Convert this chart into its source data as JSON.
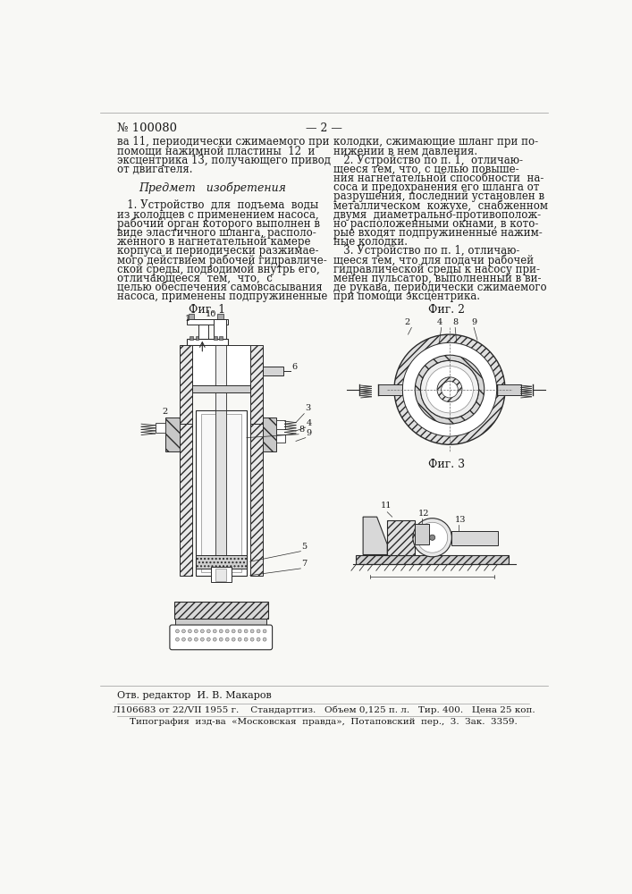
{
  "patent_number": "№ 100080",
  "page_marker": "— 2 —",
  "background_color": "#f8f8f5",
  "text_color": "#1a1a1a",
  "line_color": "#2a2a2a",
  "col1_lines": [
    "ва 11, периодически сжимаемого при",
    "помощи нажимной пластины  12  и",
    "эксцентрика 13, получающего привод",
    "от двигателя.",
    "",
    "Предмет   изобретения",
    "",
    "   1. Устройство  для  подъема  воды",
    "из колодцев с применением насоса,",
    "рабочий орган которого выполнен в",
    "виде эластичного шланга, располо-",
    "женного в нагнетательной камере",
    "корпуса и периодически разжимае-",
    "мого действием рабочей гидравличе-",
    "ской среды, подводимой внутрь его,",
    "отличающееся  тем,  что,  с",
    "целью обеспечения самовсасывания",
    "насоса, применены подпружиненные"
  ],
  "col2_lines": [
    "колодки, сжимающие шланг при по-",
    "нижении в нем давления.",
    "   2. Устройство по п. 1,  отличаю-",
    "щееся тем, что, с целью повыше-",
    "ния нагнетательной способности  на-",
    "соса и предохранения его шланга от",
    "разрушения, последний установлен в",
    "металлическом  кожухе,  снабженном",
    "двумя  диаметрально-противополож-",
    "но расположенными окнами, в кото-",
    "рые входят подпружиненные нажим-",
    "ные колодки.",
    "   3. Устройство по п. 1, отличаю-",
    "щееся тем, что для подачи рабочей",
    "гидравлической среды к насосу при-",
    "менен пульсатор, выполненный в ви-",
    "де рукава, периодически сжимаемого",
    "при помощи эксцентрика."
  ],
  "fig1_label": "Фиг. 1",
  "fig2_label": "Фиг. 2",
  "fig3_label": "Фиг. 3",
  "footer_line1": "Отв. редактор  И. В. Макаров",
  "footer_line2": "Л106683 от 22/VII 1955 г.    Стандартгиз.   Объем 0,125 п. л.   Тир. 400.   Цена 25 коп.",
  "footer_line3": "Типография  изд-ва  «Московская  правда»,  Потаповский  пер.,  3.  Зак.  3359."
}
